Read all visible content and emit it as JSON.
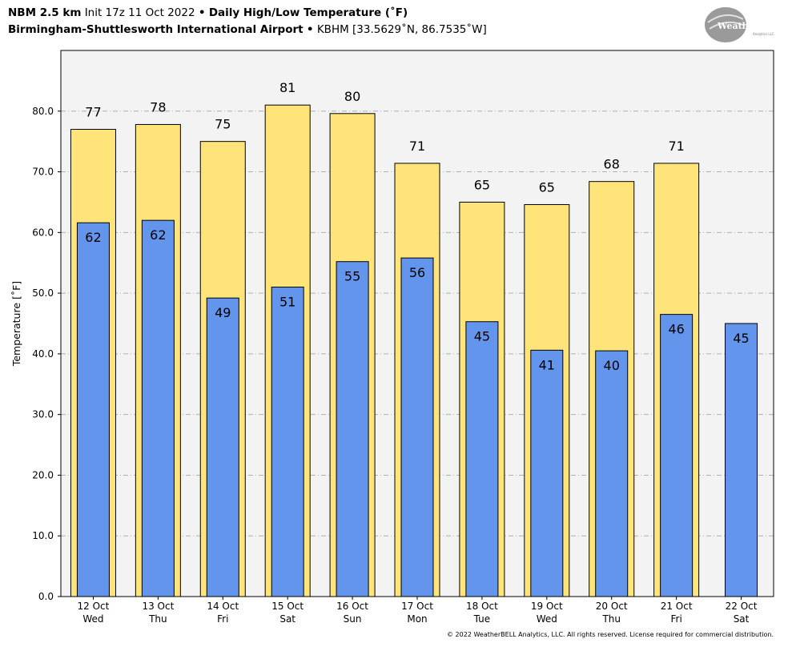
{
  "header": {
    "model": "NBM 2.5 km",
    "init": "Init 17z 11 Oct 2022",
    "sep": "•",
    "title": "Daily High/Low Temperature (˚F)",
    "station": "Birmingham-Shuttlesworth International Airport",
    "station_info": "KBHM [33.5629˚N, 86.7535˚W]"
  },
  "logo": {
    "text": "WeatherBELL",
    "sub": "Analytics LLC"
  },
  "copyright": "© 2022 WeatherBELL Analytics, LLC. All rights reserved. License required for commercial distribution.",
  "colors": {
    "high": "#FFE47A",
    "low": "#6495ED",
    "plot_bg": "#F3F3F3",
    "grid": "#b0b0b0"
  },
  "chart_data": {
    "type": "bar",
    "ylabel": "Temperature [˚F]",
    "xlabel": "",
    "ylim": [
      0,
      90
    ],
    "yticks": [
      "0.0",
      "10.0",
      "20.0",
      "30.0",
      "40.0",
      "50.0",
      "60.0",
      "70.0",
      "80.0"
    ],
    "grid": true,
    "categories": [
      {
        "date": "12 Oct",
        "day": "Wed"
      },
      {
        "date": "13 Oct",
        "day": "Thu"
      },
      {
        "date": "14 Oct",
        "day": "Fri"
      },
      {
        "date": "15 Oct",
        "day": "Sat"
      },
      {
        "date": "16 Oct",
        "day": "Sun"
      },
      {
        "date": "17 Oct",
        "day": "Mon"
      },
      {
        "date": "18 Oct",
        "day": "Tue"
      },
      {
        "date": "19 Oct",
        "day": "Wed"
      },
      {
        "date": "20 Oct",
        "day": "Thu"
      },
      {
        "date": "21 Oct",
        "day": "Fri"
      },
      {
        "date": "22 Oct",
        "day": "Sat"
      }
    ],
    "series": [
      {
        "key": "high",
        "values": [
          77,
          77.8,
          75,
          81,
          79.6,
          71.4,
          65,
          64.6,
          68.4,
          71.4,
          null
        ],
        "labels": [
          "77",
          "78",
          "75",
          "81",
          "80",
          "71",
          "65",
          "65",
          "68",
          "71",
          ""
        ]
      },
      {
        "key": "low",
        "values": [
          61.6,
          62,
          49.2,
          51,
          55.2,
          55.8,
          45.3,
          40.6,
          40.5,
          46.5,
          45
        ],
        "labels": [
          "62",
          "62",
          "49",
          "51",
          "55",
          "56",
          "45",
          "41",
          "40",
          "46",
          "45"
        ]
      }
    ]
  }
}
